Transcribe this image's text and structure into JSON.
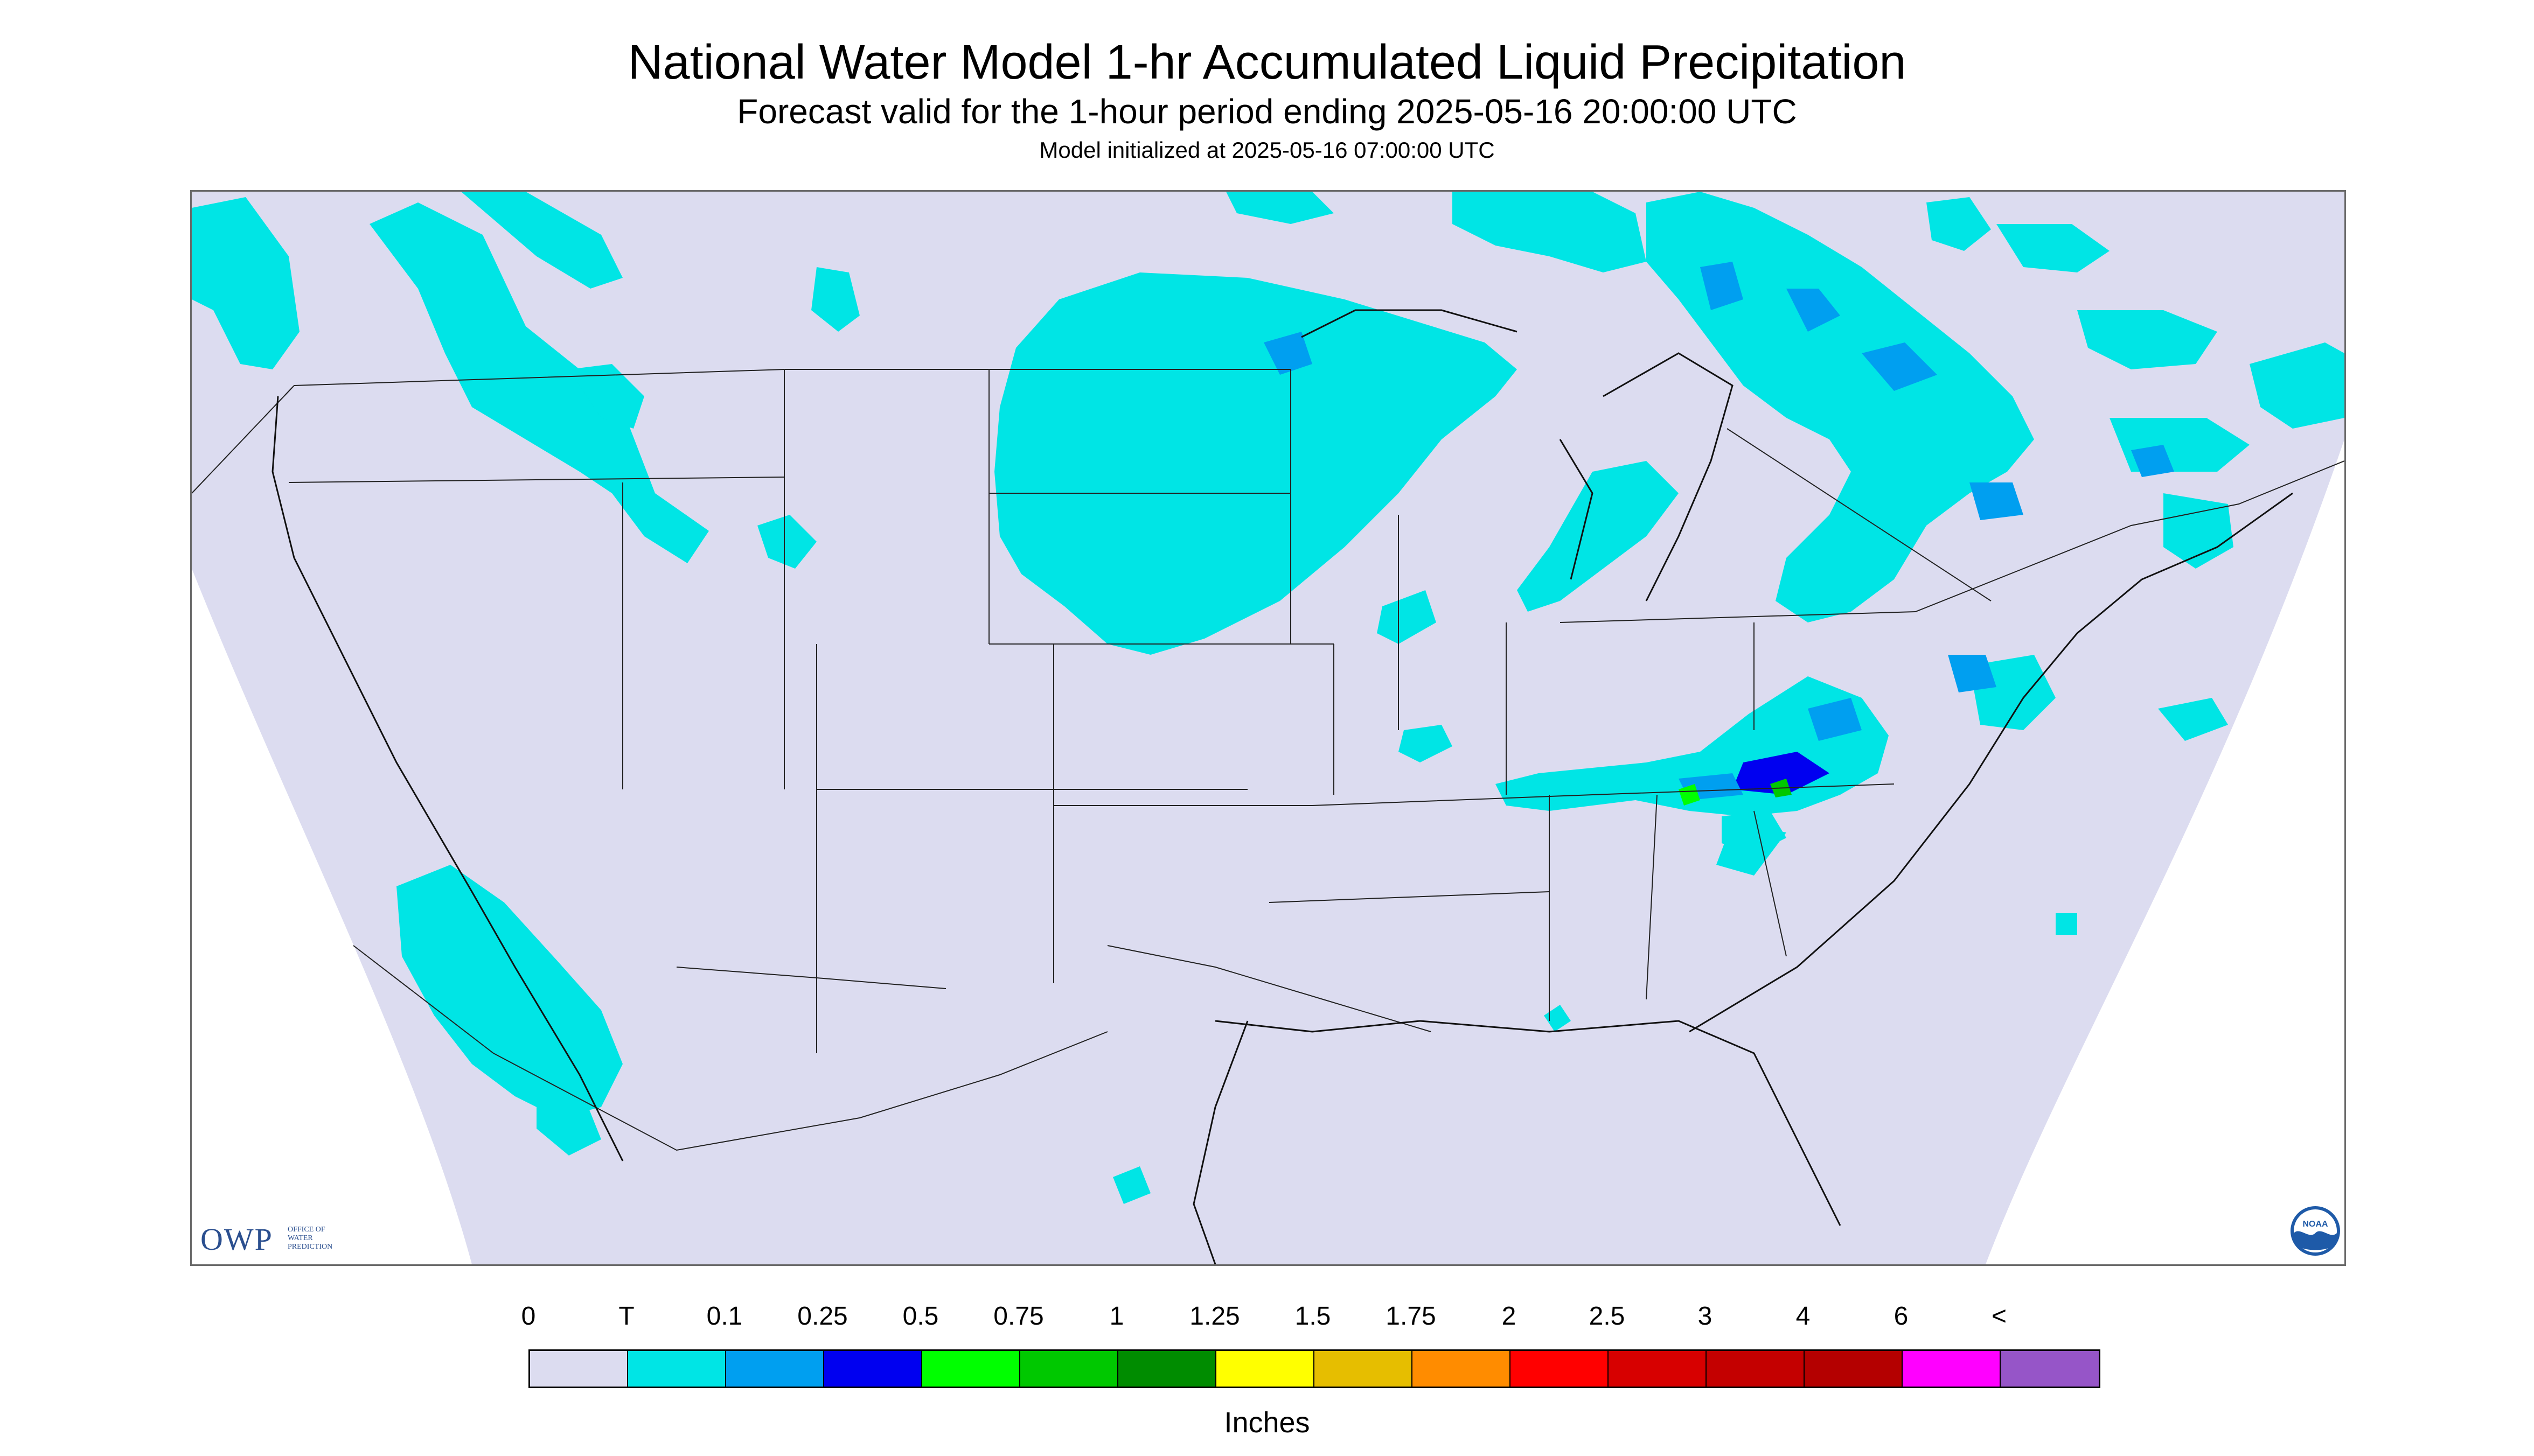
{
  "header": {
    "title": "National Water Model 1-hr Accumulated Liquid Precipitation",
    "subtitle": "Forecast valid for the 1-hour period ending 2025-05-16 20:00:00 UTC",
    "init": "Model initialized at 2025-05-16 07:00:00 UTC"
  },
  "map": {
    "background_color": "#dcdcf0",
    "outside_color": "#ffffff",
    "precip_colors": [
      "#00e5e5",
      "#009ff0",
      "#0000f0",
      "#00ff00",
      "#00c800",
      "#008c00"
    ]
  },
  "logos": {
    "owp_main": "OWP",
    "owp_sub": [
      "OFFICE OF",
      "WATER",
      "PREDICTION"
    ],
    "noaa": "NOAA"
  },
  "legend": {
    "labels": [
      "0",
      "T",
      "0.1",
      "0.25",
      "0.5",
      "0.75",
      "1",
      "1.25",
      "1.5",
      "1.75",
      "2",
      "2.5",
      "3",
      "4",
      "6",
      "<"
    ],
    "colors": [
      "#dcdcf0",
      "#00e5e5",
      "#009ff0",
      "#0000f0",
      "#00ff00",
      "#00c800",
      "#008c00",
      "#ffff00",
      "#e6be00",
      "#ff8c00",
      "#ff0000",
      "#d70000",
      "#c40000",
      "#b40000",
      "#ff00ff",
      "#9655c8"
    ],
    "units": "Inches"
  }
}
